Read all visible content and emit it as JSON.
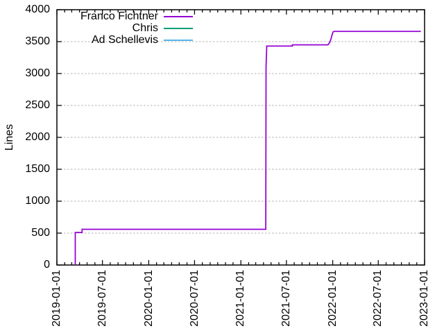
{
  "page": {
    "background": "#ffffff"
  },
  "chart_data": {
    "type": "line",
    "title": "",
    "xlabel": "",
    "ylabel": "Lines",
    "x_axis": {
      "scale": "date",
      "range": [
        "2019-01-01",
        "2023-01-01"
      ],
      "tick_labels": [
        "2019-01-01",
        "2019-07-01",
        "2020-01-01",
        "2020-07-01",
        "2021-01-01",
        "2021-07-01",
        "2022-01-01",
        "2022-07-01",
        "2023-01-01"
      ],
      "minor_ticks": "monthly",
      "tick_label_rotation_deg": -90
    },
    "y_axis": {
      "range": [
        0,
        4000
      ],
      "tick_step": 500,
      "tick_labels": [
        "0",
        "500",
        "1000",
        "1500",
        "2000",
        "2500",
        "3000",
        "3500",
        "4000"
      ],
      "grid": {
        "show": true,
        "style": "dashed",
        "color": "#b0b0b0"
      }
    },
    "legend": {
      "position": "top-inside",
      "entries": [
        "Franco Fichtner",
        "Chris",
        "Ad Schellevis"
      ]
    },
    "axis_color": "#000000",
    "text_color": "#000000",
    "series": [
      {
        "name": "Franco Fichtner",
        "color": "#9400d3",
        "style": "steps",
        "visible": true,
        "points": [
          [
            "2019-03-15",
            0
          ],
          [
            "2019-03-15",
            510
          ],
          [
            "2019-04-11",
            510
          ],
          [
            "2019-04-11",
            560
          ],
          [
            "2021-04-10",
            560
          ],
          [
            "2021-04-11",
            3100
          ],
          [
            "2021-04-14",
            3430
          ],
          [
            "2021-07-25",
            3430
          ],
          [
            "2021-07-25",
            3450
          ],
          [
            "2021-12-13",
            3450
          ],
          [
            "2021-12-19",
            3480
          ],
          [
            "2021-12-25",
            3540
          ],
          [
            "2021-12-29",
            3600
          ],
          [
            "2022-01-02",
            3650
          ],
          [
            "2022-01-06",
            3660
          ],
          [
            "2022-12-17",
            3660
          ]
        ]
      },
      {
        "name": "Chris",
        "color": "#009e73",
        "style": "steps",
        "visible": false,
        "points": []
      },
      {
        "name": "Ad Schellevis",
        "color": "#56b4e9",
        "style": "steps",
        "visible": false,
        "points": []
      }
    ]
  }
}
